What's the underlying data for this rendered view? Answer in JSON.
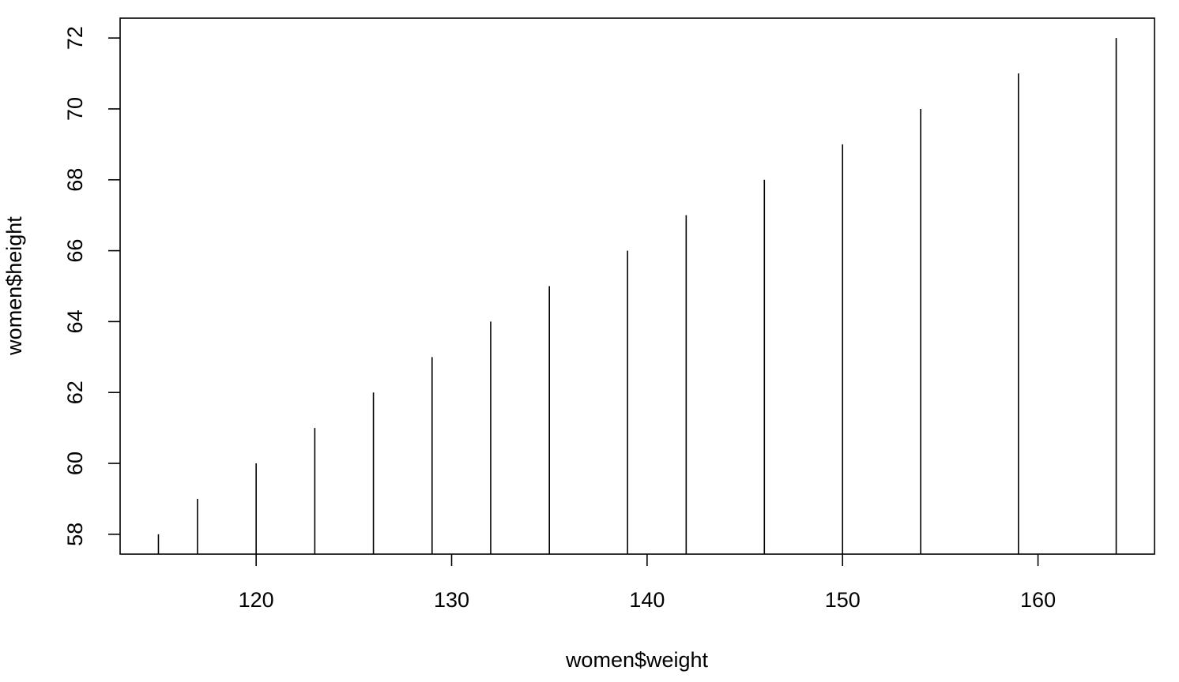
{
  "chart_data": {
    "type": "stem",
    "xlabel": "women$weight",
    "ylabel": "women$height",
    "x": [
      115,
      117,
      120,
      123,
      126,
      129,
      132,
      135,
      139,
      142,
      146,
      150,
      154,
      159,
      164
    ],
    "values": [
      58,
      59,
      60,
      61,
      62,
      63,
      64,
      65,
      66,
      67,
      68,
      69,
      70,
      71,
      72
    ],
    "color": "#000000",
    "xlim": [
      113.04,
      165.96
    ],
    "ylim": [
      57.44,
      72.56
    ],
    "xticks": [
      120,
      130,
      140,
      150,
      160
    ],
    "yticks": [
      58,
      60,
      62,
      64,
      66,
      68,
      70,
      72
    ]
  }
}
